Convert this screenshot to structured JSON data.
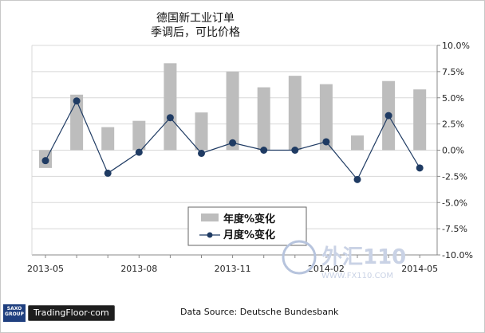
{
  "title_lines": [
    "德国新工业订单",
    "季调后，可比价格"
  ],
  "source": "Data Source: Deutsche Bundesbank",
  "brand": {
    "group_top": "SAXO",
    "group_bottom": "GROUP",
    "name": "TradingFloor·com"
  },
  "watermark": {
    "text": "外汇110",
    "url": "WWW.FX110.COM"
  },
  "colors": {
    "bar": "#bdbdbd",
    "line": "#1f3b63",
    "grid": "#d8d8d8",
    "axis": "#888888"
  },
  "chart_data": {
    "type": "bar",
    "x": [
      "2013-05",
      "2013-06",
      "2013-07",
      "2013-08",
      "2013-09",
      "2013-10",
      "2013-11",
      "2013-12",
      "2014-01",
      "2014-02",
      "2014-03",
      "2014-04",
      "2014-05"
    ],
    "xticks": [
      "2013-05",
      "2013-08",
      "2013-11",
      "2014-02",
      "2014-05"
    ],
    "yticks": [
      "10.0%",
      "7.5%",
      "5.0%",
      "2.5%",
      "0.0%",
      "-2.5%",
      "-5.0%",
      "-7.5%",
      "-10.0%"
    ],
    "ylim": [
      -10,
      10
    ],
    "series": [
      {
        "name": "年度%变化",
        "type": "bar",
        "values": [
          -1.7,
          5.3,
          2.2,
          2.8,
          8.3,
          3.6,
          7.5,
          6.0,
          7.1,
          6.3,
          1.4,
          6.6,
          5.8
        ]
      },
      {
        "name": "月度%变化",
        "type": "line",
        "values": [
          -1.0,
          4.7,
          -2.2,
          -0.2,
          3.1,
          -0.3,
          0.7,
          0.0,
          0.0,
          0.8,
          -2.8,
          3.3,
          -1.7
        ]
      }
    ],
    "grid": true,
    "legend_position": "bottom-center"
  }
}
